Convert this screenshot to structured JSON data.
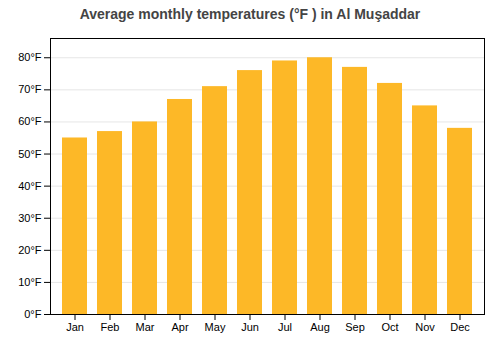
{
  "chart_data": {
    "type": "bar",
    "title": "Average monthly temperatures (°F ) in Al Muşaddar",
    "categories": [
      "Jan",
      "Feb",
      "Mar",
      "Apr",
      "May",
      "Jun",
      "Jul",
      "Aug",
      "Sep",
      "Oct",
      "Nov",
      "Dec"
    ],
    "values": [
      55,
      57,
      60,
      67,
      71,
      76,
      79,
      80,
      77,
      72,
      65,
      58
    ],
    "color": "#FDB827",
    "ylim": [
      0,
      86
    ],
    "yticks": [
      {
        "value": 0,
        "label": "0°F"
      },
      {
        "value": 10,
        "label": "10°F"
      },
      {
        "value": 20,
        "label": "20°F"
      },
      {
        "value": 30,
        "label": "30°F"
      },
      {
        "value": 40,
        "label": "40°F"
      },
      {
        "value": 50,
        "label": "50°F"
      },
      {
        "value": 60,
        "label": "60°F"
      },
      {
        "value": 70,
        "label": "70°F"
      },
      {
        "value": 80,
        "label": "80°F"
      }
    ],
    "grid": true
  }
}
